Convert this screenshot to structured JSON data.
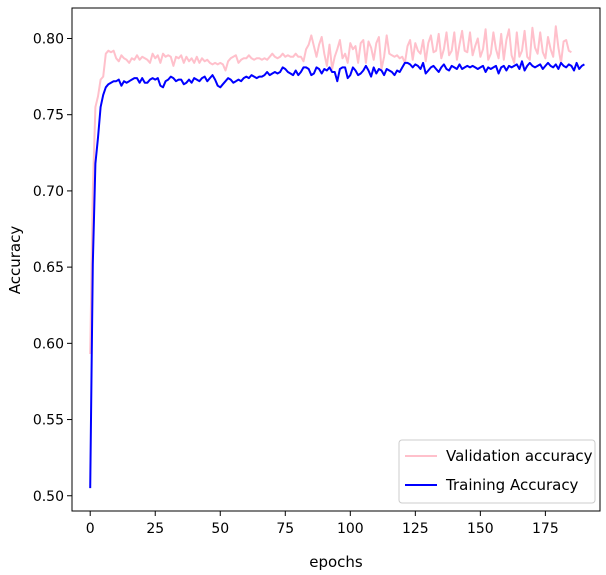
{
  "chart_data": {
    "type": "line",
    "title": "",
    "xlabel": "epochs",
    "ylabel": "Accuracy",
    "xlim": [
      -7,
      196
    ],
    "ylim": [
      0.49,
      0.82
    ],
    "x_ticks": [
      0,
      25,
      50,
      75,
      100,
      125,
      150,
      175
    ],
    "y_ticks": [
      0.5,
      0.55,
      0.6,
      0.65,
      0.7,
      0.75,
      0.8
    ],
    "y_tick_format": 2,
    "grid": false,
    "legend_position": "lower-right",
    "series": [
      {
        "name": "Validation accuracy",
        "color": "#ffc0cb",
        "values": [
          0.593,
          0.7,
          0.755,
          0.762,
          0.773,
          0.775,
          0.79,
          0.792,
          0.791,
          0.792,
          0.787,
          0.785,
          0.789,
          0.787,
          0.786,
          0.784,
          0.787,
          0.786,
          0.789,
          0.786,
          0.788,
          0.787,
          0.786,
          0.784,
          0.79,
          0.787,
          0.789,
          0.784,
          0.79,
          0.788,
          0.789,
          0.788,
          0.782,
          0.788,
          0.787,
          0.789,
          0.784,
          0.788,
          0.785,
          0.787,
          0.784,
          0.788,
          0.784,
          0.787,
          0.785,
          0.786,
          0.784,
          0.783,
          0.784,
          0.783,
          0.784,
          0.783,
          0.779,
          0.785,
          0.787,
          0.788,
          0.789,
          0.784,
          0.786,
          0.787,
          0.787,
          0.789,
          0.787,
          0.786,
          0.787,
          0.787,
          0.786,
          0.787,
          0.786,
          0.788,
          0.79,
          0.788,
          0.787,
          0.788,
          0.79,
          0.788,
          0.789,
          0.788,
          0.788,
          0.79,
          0.788,
          0.788,
          0.785,
          0.793,
          0.796,
          0.802,
          0.795,
          0.788,
          0.796,
          0.801,
          0.79,
          0.782,
          0.796,
          0.78,
          0.788,
          0.793,
          0.799,
          0.787,
          0.79,
          0.784,
          0.797,
          0.793,
          0.795,
          0.784,
          0.797,
          0.799,
          0.784,
          0.798,
          0.794,
          0.786,
          0.797,
          0.801,
          0.78,
          0.788,
          0.802,
          0.79,
          0.789,
          0.788,
          0.789,
          0.787,
          0.788,
          0.784,
          0.795,
          0.799,
          0.786,
          0.797,
          0.792,
          0.79,
          0.799,
          0.785,
          0.797,
          0.802,
          0.791,
          0.792,
          0.803,
          0.787,
          0.793,
          0.804,
          0.789,
          0.792,
          0.804,
          0.786,
          0.796,
          0.805,
          0.792,
          0.791,
          0.804,
          0.789,
          0.795,
          0.8,
          0.788,
          0.793,
          0.806,
          0.786,
          0.79,
          0.804,
          0.793,
          0.787,
          0.803,
          0.786,
          0.799,
          0.806,
          0.789,
          0.784,
          0.804,
          0.788,
          0.792,
          0.805,
          0.788,
          0.786,
          0.807,
          0.794,
          0.79,
          0.804,
          0.791,
          0.787,
          0.801,
          0.793,
          0.788,
          0.808,
          0.794,
          0.784,
          0.798,
          0.799,
          0.792,
          0.791
        ]
      },
      {
        "name": "Training Accuracy",
        "color": "#0000ff",
        "values": [
          0.505,
          0.652,
          0.718,
          0.735,
          0.755,
          0.763,
          0.768,
          0.77,
          0.771,
          0.772,
          0.772,
          0.773,
          0.769,
          0.772,
          0.771,
          0.772,
          0.773,
          0.774,
          0.774,
          0.771,
          0.774,
          0.771,
          0.771,
          0.773,
          0.774,
          0.773,
          0.774,
          0.769,
          0.768,
          0.772,
          0.773,
          0.775,
          0.774,
          0.772,
          0.773,
          0.773,
          0.77,
          0.771,
          0.773,
          0.771,
          0.774,
          0.773,
          0.772,
          0.774,
          0.775,
          0.772,
          0.774,
          0.776,
          0.773,
          0.769,
          0.768,
          0.77,
          0.772,
          0.774,
          0.773,
          0.771,
          0.772,
          0.773,
          0.772,
          0.774,
          0.775,
          0.774,
          0.776,
          0.775,
          0.774,
          0.775,
          0.775,
          0.776,
          0.778,
          0.776,
          0.777,
          0.778,
          0.777,
          0.778,
          0.781,
          0.78,
          0.778,
          0.777,
          0.776,
          0.779,
          0.776,
          0.778,
          0.781,
          0.781,
          0.78,
          0.776,
          0.777,
          0.781,
          0.78,
          0.777,
          0.78,
          0.779,
          0.781,
          0.778,
          0.778,
          0.772,
          0.78,
          0.781,
          0.781,
          0.774,
          0.776,
          0.781,
          0.779,
          0.776,
          0.777,
          0.779,
          0.782,
          0.779,
          0.775,
          0.781,
          0.777,
          0.78,
          0.779,
          0.776,
          0.78,
          0.779,
          0.778,
          0.776,
          0.779,
          0.778,
          0.781,
          0.784,
          0.784,
          0.783,
          0.781,
          0.783,
          0.782,
          0.78,
          0.784,
          0.777,
          0.779,
          0.781,
          0.782,
          0.78,
          0.778,
          0.781,
          0.783,
          0.78,
          0.779,
          0.782,
          0.781,
          0.78,
          0.783,
          0.78,
          0.781,
          0.782,
          0.781,
          0.782,
          0.781,
          0.78,
          0.781,
          0.782,
          0.778,
          0.781,
          0.78,
          0.781,
          0.782,
          0.777,
          0.781,
          0.782,
          0.779,
          0.782,
          0.781,
          0.782,
          0.783,
          0.78,
          0.785,
          0.779,
          0.782,
          0.784,
          0.782,
          0.781,
          0.782,
          0.783,
          0.78,
          0.782,
          0.784,
          0.782,
          0.781,
          0.783,
          0.78,
          0.784,
          0.782,
          0.781,
          0.783,
          0.782,
          0.779,
          0.784,
          0.78,
          0.782,
          0.783
        ]
      }
    ]
  }
}
